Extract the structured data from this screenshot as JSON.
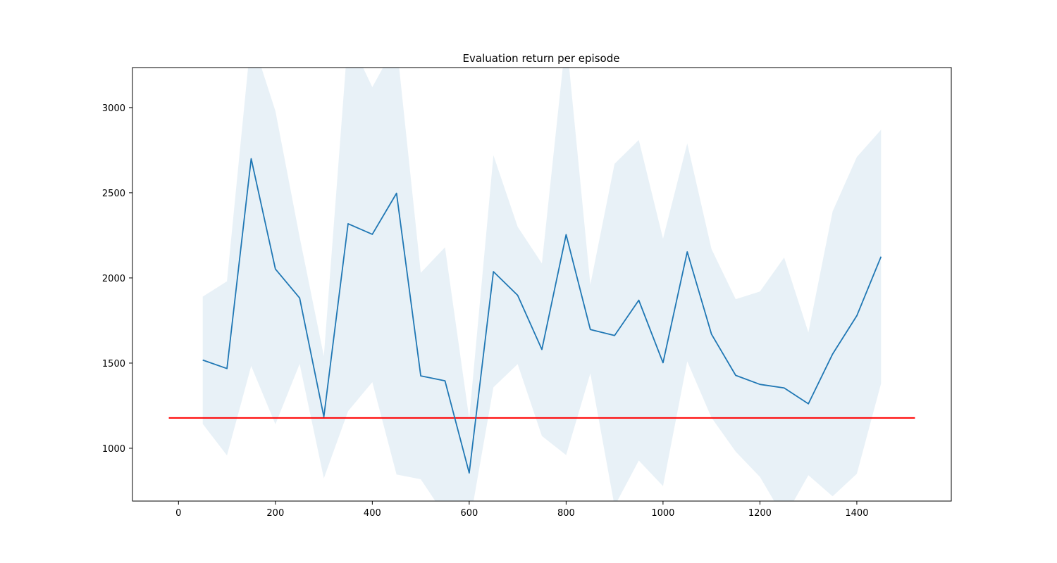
{
  "chart_data": {
    "type": "line",
    "title": "Evaluation return per episode",
    "xlabel": "",
    "ylabel": "",
    "xlim": [
      -95,
      1595
    ],
    "ylim": [
      690,
      3235
    ],
    "x_ticks": [
      0,
      200,
      400,
      600,
      800,
      1000,
      1200,
      1400
    ],
    "y_ticks": [
      1000,
      1500,
      2000,
      2500,
      3000
    ],
    "grid": false,
    "colors": {
      "line": "#1f77b4",
      "band": "#1f77b4",
      "band_opacity": 0.1,
      "threshold": "#ff0000"
    },
    "series": [
      {
        "x": [
          50,
          100,
          150,
          200,
          250,
          300,
          350,
          400,
          450,
          500,
          550,
          600,
          650,
          700,
          750,
          800,
          850,
          900,
          950,
          1000,
          1050,
          1100,
          1150,
          1200,
          1250,
          1300,
          1350,
          1400,
          1450
        ],
        "values": [
          1518,
          1468,
          2700,
          2052,
          1882,
          1185,
          2318,
          2256,
          2497,
          1425,
          1396,
          855,
          2037,
          1898,
          1580,
          2254,
          1697,
          1662,
          1869,
          1502,
          2153,
          1670,
          1428,
          1375,
          1354,
          1261,
          1553,
          1778,
          2125
        ],
        "upper": [
          1890,
          1980,
          3420,
          2980,
          2240,
          1540,
          3420,
          3120,
          3380,
          2030,
          2180,
          1175,
          2720,
          2300,
          2085,
          3420,
          1960,
          2670,
          2810,
          2230,
          2790,
          2170,
          1875,
          1920,
          2120,
          1680,
          2390,
          2710,
          2870
        ],
        "lower": [
          1143,
          958,
          1483,
          1141,
          1495,
          824,
          1218,
          1388,
          846,
          818,
          605,
          545,
          1358,
          1494,
          1072,
          960,
          1440,
          660,
          928,
          778,
          1510,
          1180,
          980,
          832,
          590,
          842,
          718,
          850,
          1380
        ]
      }
    ],
    "reference_line": {
      "y": 1178,
      "x_range": [
        -20,
        1520
      ]
    }
  }
}
